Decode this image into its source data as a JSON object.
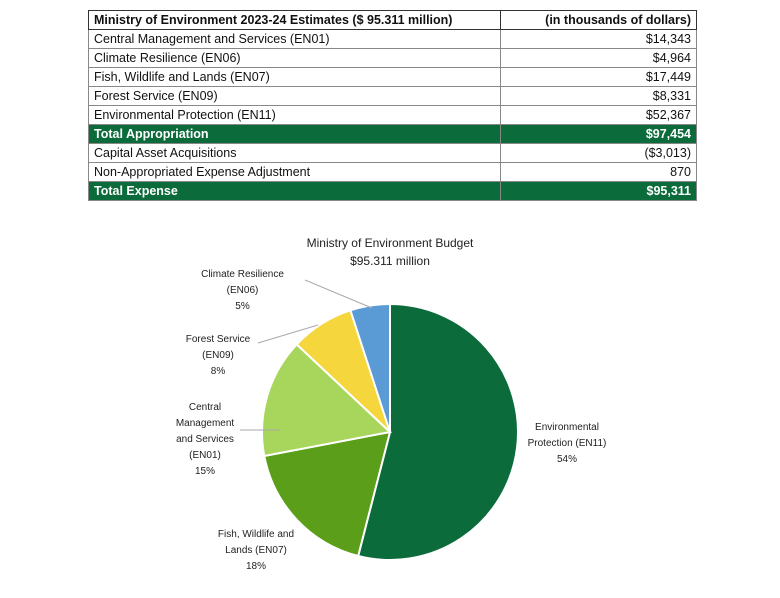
{
  "table": {
    "header": [
      "Ministry of Environment 2023-24 Estimates ($ 95.311 million)",
      "(in thousands of dollars)"
    ],
    "rows": [
      [
        "Central Management and Services (EN01)",
        "$14,343"
      ],
      [
        "Climate Resilience (EN06)",
        "$4,964"
      ],
      [
        "Fish, Wildlife and Lands (EN07)",
        "$17,449"
      ],
      [
        "Forest Service (EN09)",
        "$8,331"
      ],
      [
        "Environmental Protection (EN11)",
        "$52,367"
      ],
      [
        "Total Appropriation",
        "$97,454"
      ],
      [
        "Capital Asset Acquisitions",
        "($3,013)"
      ],
      [
        "Non-Appropriated Expense Adjustment",
        "870"
      ],
      [
        "Total Expense",
        "$95,311"
      ]
    ]
  },
  "chart_data": {
    "type": "pie",
    "title": "Ministry of Environment Budget",
    "subtitle": "$95.311 million",
    "categories": [
      "Environmental Protection (EN11)",
      "Fish, Wildlife and Lands (EN07)",
      "Central Management and Services (EN01)",
      "Forest Service (EN09)",
      "Climate Resilience (EN06)"
    ],
    "values": [
      54,
      18,
      15,
      8,
      5
    ],
    "value_labels": [
      "54%",
      "18%",
      "15%",
      "8%",
      "5%"
    ],
    "colors": [
      "#0b6b3a",
      "#5a9e1a",
      "#a8d65c",
      "#f5d63d",
      "#5b9bd5"
    ]
  }
}
